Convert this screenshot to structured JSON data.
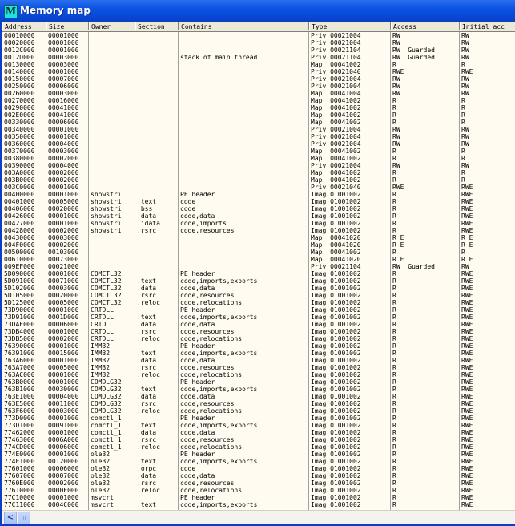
{
  "window": {
    "title": "Memory map",
    "icon_letter": "M",
    "icon": "ollydbg-memory-map-icon"
  },
  "columns": [
    "Address",
    "Size",
    "Owner",
    "Section",
    "Contains",
    "Type",
    "Access",
    "Initial acc"
  ],
  "rows": [
    [
      "00010000",
      "00001000",
      "",
      "",
      "",
      "Priv 00021004",
      "RW",
      "RW"
    ],
    [
      "00020000",
      "00001000",
      "",
      "",
      "",
      "Priv 00021004",
      "RW",
      "RW"
    ],
    [
      "0012C000",
      "00001000",
      "",
      "",
      "",
      "Priv 00021104",
      "RW  Guarded",
      "RW"
    ],
    [
      "0012D000",
      "00003000",
      "",
      "",
      "stack of main thread",
      "Priv 00021104",
      "RW  Guarded",
      "RW"
    ],
    [
      "00130000",
      "00003000",
      "",
      "",
      "",
      "Map  00041002",
      "R",
      "R"
    ],
    [
      "00140000",
      "00001000",
      "",
      "",
      "",
      "Priv 00021040",
      "RWE",
      "RWE"
    ],
    [
      "00150000",
      "00007000",
      "",
      "",
      "",
      "Priv 00021004",
      "RW",
      "RW"
    ],
    [
      "00250000",
      "00006000",
      "",
      "",
      "",
      "Priv 00021004",
      "RW",
      "RW"
    ],
    [
      "00260000",
      "00003000",
      "",
      "",
      "",
      "Map  00041004",
      "RW",
      "RW"
    ],
    [
      "00270000",
      "00016000",
      "",
      "",
      "",
      "Map  00041002",
      "R",
      "R"
    ],
    [
      "00290000",
      "00041000",
      "",
      "",
      "",
      "Map  00041002",
      "R",
      "R"
    ],
    [
      "002E0000",
      "00041000",
      "",
      "",
      "",
      "Map  00041002",
      "R",
      "R"
    ],
    [
      "00330000",
      "00006000",
      "",
      "",
      "",
      "Map  00041002",
      "R",
      "R"
    ],
    [
      "00340000",
      "00001000",
      "",
      "",
      "",
      "Priv 00021004",
      "RW",
      "RW"
    ],
    [
      "00350000",
      "00001000",
      "",
      "",
      "",
      "Priv 00021004",
      "RW",
      "RW"
    ],
    [
      "00360000",
      "00004000",
      "",
      "",
      "",
      "Priv 00021004",
      "RW",
      "RW"
    ],
    [
      "00370000",
      "00003000",
      "",
      "",
      "",
      "Map  00041002",
      "R",
      "R"
    ],
    [
      "00380000",
      "00002000",
      "",
      "",
      "",
      "Map  00041002",
      "R",
      "R"
    ],
    [
      "00390000",
      "00004000",
      "",
      "",
      "",
      "Priv 00021004",
      "RW",
      "RW"
    ],
    [
      "003A0000",
      "00002000",
      "",
      "",
      "",
      "Map  00041002",
      "R",
      "R"
    ],
    [
      "003B0000",
      "00002000",
      "",
      "",
      "",
      "Map  00041002",
      "R",
      "R"
    ],
    [
      "003C0000",
      "00001000",
      "",
      "",
      "",
      "Priv 00021040",
      "RWE",
      "RWE"
    ],
    [
      "00400000",
      "00001000",
      "showstri",
      "",
      "PE header",
      "Imag 01001002",
      "R",
      "RWE"
    ],
    [
      "00401000",
      "00005000",
      "showstri",
      ".text",
      "code",
      "Imag 01001002",
      "R",
      "RWE"
    ],
    [
      "00406000",
      "00020000",
      "showstri",
      ".bss",
      "code",
      "Imag 01001002",
      "R",
      "RWE"
    ],
    [
      "00426000",
      "00001000",
      "showstri",
      ".data",
      "code,data",
      "Imag 01001002",
      "R",
      "RWE"
    ],
    [
      "00427000",
      "00001000",
      "showstri",
      ".idata",
      "code,imports",
      "Imag 01001002",
      "R",
      "RWE"
    ],
    [
      "00428000",
      "00002000",
      "showstri",
      ".rsrc",
      "code,resources",
      "Imag 01001002",
      "R",
      "RWE"
    ],
    [
      "00430000",
      "00003000",
      "",
      "",
      "",
      "Map  00041020",
      "R E",
      "R E"
    ],
    [
      "004F0000",
      "00002000",
      "",
      "",
      "",
      "Map  00041020",
      "R E",
      "R E"
    ],
    [
      "00500000",
      "00103000",
      "",
      "",
      "",
      "Map  00041002",
      "R",
      "R"
    ],
    [
      "00610000",
      "00073000",
      "",
      "",
      "",
      "Map  00041020",
      "R E",
      "R E"
    ],
    [
      "009EF000",
      "00021000",
      "",
      "",
      "",
      "Priv 00021104",
      "RW  Guarded",
      "RW"
    ],
    [
      "5D090000",
      "00001000",
      "COMCTL32",
      "",
      "PE header",
      "Imag 01001002",
      "R",
      "RWE"
    ],
    [
      "5D091000",
      "00071000",
      "COMCTL32",
      ".text",
      "code,imports,exports",
      "Imag 01001002",
      "R",
      "RWE"
    ],
    [
      "5D102000",
      "00003000",
      "COMCTL32",
      ".data",
      "code,data",
      "Imag 01001002",
      "R",
      "RWE"
    ],
    [
      "5D105000",
      "00020000",
      "COMCTL32",
      ".rsrc",
      "code,resources",
      "Imag 01001002",
      "R",
      "RWE"
    ],
    [
      "5D125000",
      "00005000",
      "COMCTL32",
      ".reloc",
      "code,relocations",
      "Imag 01001002",
      "R",
      "RWE"
    ],
    [
      "73D90000",
      "00001000",
      "CRTDLL",
      "",
      "PE header",
      "Imag 01001002",
      "R",
      "RWE"
    ],
    [
      "73D91000",
      "0001D000",
      "CRTDLL",
      ".text",
      "code,imports,exports",
      "Imag 01001002",
      "R",
      "RWE"
    ],
    [
      "73DAE000",
      "00006000",
      "CRTDLL",
      ".data",
      "code,data",
      "Imag 01001002",
      "R",
      "RWE"
    ],
    [
      "73DB4000",
      "00001000",
      "CRTDLL",
      ".rsrc",
      "code,resources",
      "Imag 01001002",
      "R",
      "RWE"
    ],
    [
      "73DB5000",
      "00002000",
      "CRTDLL",
      ".reloc",
      "code,relocations",
      "Imag 01001002",
      "R",
      "RWE"
    ],
    [
      "76390000",
      "00001000",
      "IMM32",
      "",
      "PE header",
      "Imag 01001002",
      "R",
      "RWE"
    ],
    [
      "76391000",
      "00015000",
      "IMM32",
      ".text",
      "code,imports,exports",
      "Imag 01001002",
      "R",
      "RWE"
    ],
    [
      "763A6000",
      "00001000",
      "IMM32",
      ".data",
      "code,data",
      "Imag 01001002",
      "R",
      "RWE"
    ],
    [
      "763A7000",
      "00005000",
      "IMM32",
      ".rsrc",
      "code,resources",
      "Imag 01001002",
      "R",
      "RWE"
    ],
    [
      "763AC000",
      "00001000",
      "IMM32",
      ".reloc",
      "code,relocations",
      "Imag 01001002",
      "R",
      "RWE"
    ],
    [
      "763B0000",
      "00001000",
      "COMDLG32",
      "",
      "PE header",
      "Imag 01001002",
      "R",
      "RWE"
    ],
    [
      "763B1000",
      "00030000",
      "COMDLG32",
      ".text",
      "code,imports,exports",
      "Imag 01001002",
      "R",
      "RWE"
    ],
    [
      "763E1000",
      "00004000",
      "COMDLG32",
      ".data",
      "code,data",
      "Imag 01001002",
      "R",
      "RWE"
    ],
    [
      "763E5000",
      "00011000",
      "COMDLG32",
      ".rsrc",
      "code,resources",
      "Imag 01001002",
      "R",
      "RWE"
    ],
    [
      "763F6000",
      "00003000",
      "COMDLG32",
      ".reloc",
      "code,relocations",
      "Imag 01001002",
      "R",
      "RWE"
    ],
    [
      "773D0000",
      "00001000",
      "comctl_1",
      "",
      "PE header",
      "Imag 01001002",
      "R",
      "RWE"
    ],
    [
      "773D1000",
      "00091000",
      "comctl_1",
      ".text",
      "code,imports,exports",
      "Imag 01001002",
      "R",
      "RWE"
    ],
    [
      "77462000",
      "00001000",
      "comctl_1",
      ".data",
      "code,data",
      "Imag 01001002",
      "R",
      "RWE"
    ],
    [
      "77463000",
      "0006A000",
      "comctl_1",
      ".rsrc",
      "code,resources",
      "Imag 01001002",
      "R",
      "RWE"
    ],
    [
      "774CD000",
      "00006000",
      "comctl_1",
      ".reloc",
      "code,relocations",
      "Imag 01001002",
      "R",
      "RWE"
    ],
    [
      "774E0000",
      "00001000",
      "ole32",
      "",
      "PE header",
      "Imag 01001002",
      "R",
      "RWE"
    ],
    [
      "774E1000",
      "00120000",
      "ole32",
      ".text",
      "code,imports,exports",
      "Imag 01001002",
      "R",
      "RWE"
    ],
    [
      "77601000",
      "00006000",
      "ole32",
      ".orpc",
      "code",
      "Imag 01001002",
      "R",
      "RWE"
    ],
    [
      "77607000",
      "00007000",
      "ole32",
      ".data",
      "code,data",
      "Imag 01001002",
      "R",
      "RWE"
    ],
    [
      "7760E000",
      "00002000",
      "ole32",
      ".rsrc",
      "code,resources",
      "Imag 01001002",
      "R",
      "RWE"
    ],
    [
      "77610000",
      "0000E000",
      "ole32",
      ".reloc",
      "code,relocations",
      "Imag 01001002",
      "R",
      "RWE"
    ],
    [
      "77C10000",
      "00001000",
      "msvcrt",
      "",
      "PE header",
      "Imag 01001002",
      "R",
      "RWE"
    ],
    [
      "77C11000",
      "0004C000",
      "msvcrt",
      ".text",
      "code,imports,exports",
      "Imag 01001002",
      "R",
      "RWE"
    ]
  ],
  "scrollbar": {
    "left_arrow": "<"
  }
}
